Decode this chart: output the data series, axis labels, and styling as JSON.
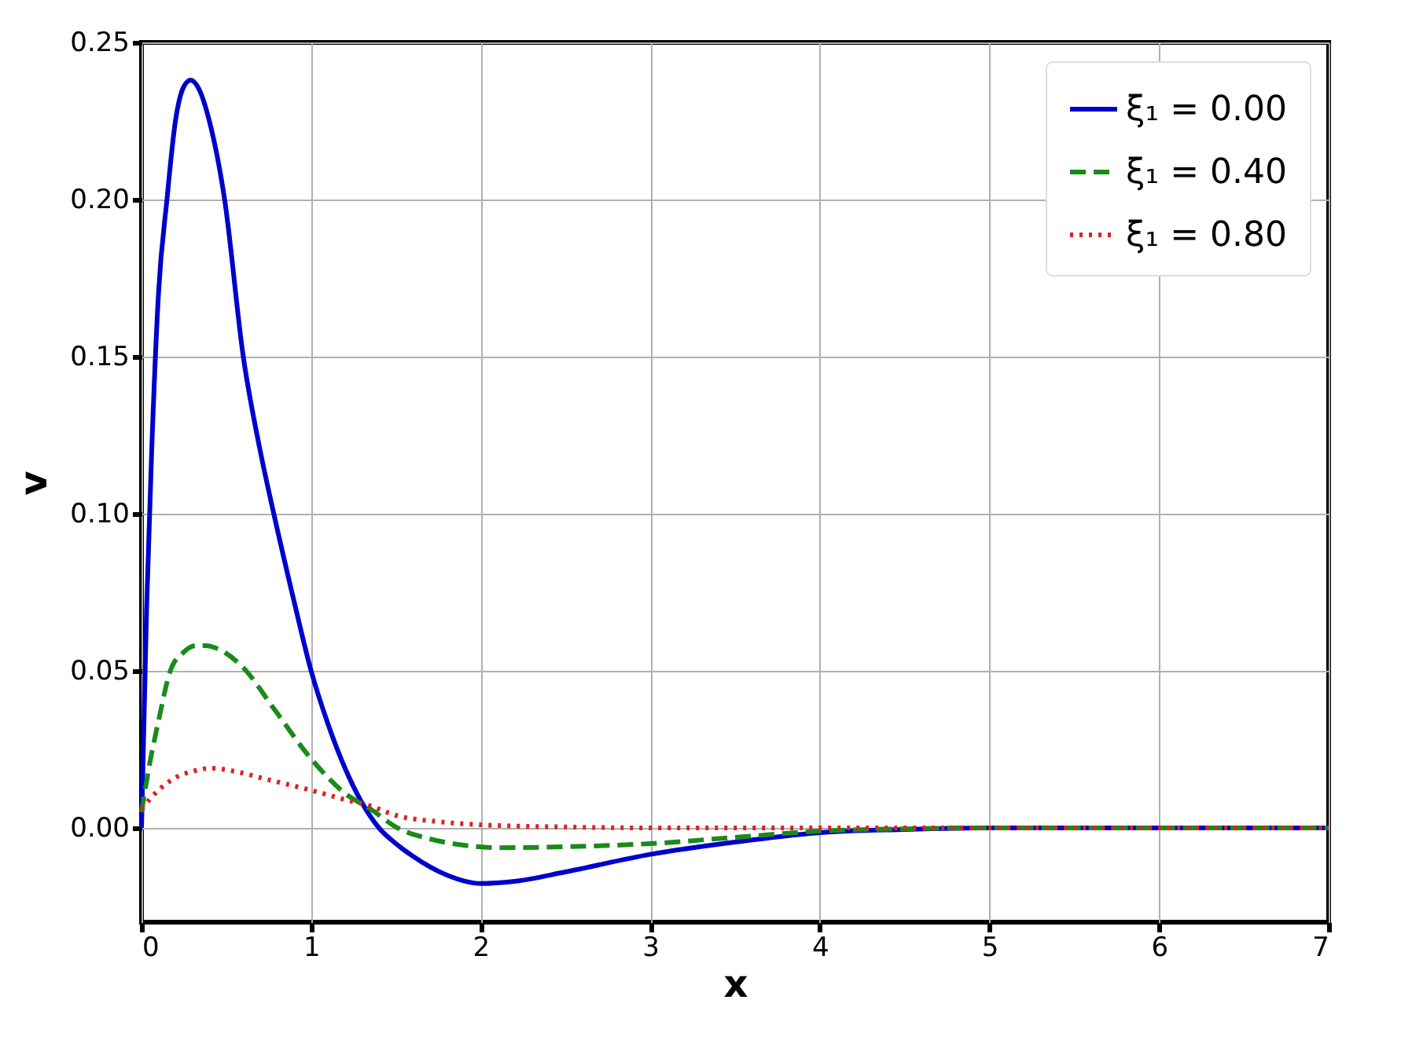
{
  "chart_data": {
    "type": "line",
    "xlabel": "x",
    "ylabel": "v",
    "xlim": [
      0,
      7
    ],
    "xticks": [
      0,
      1,
      2,
      3,
      4,
      5,
      6,
      7
    ],
    "ylim": [
      -0.03,
      0.25
    ],
    "yticks": [
      {
        "value": 0,
        "label": "0.00"
      },
      {
        "value": 0.05,
        "label": "0.05"
      },
      {
        "value": 0.1,
        "label": "0.10"
      },
      {
        "value": 0.15,
        "label": "0.15"
      },
      {
        "value": 0.2,
        "label": "0.20"
      },
      {
        "value": 0.25,
        "label": "0.25"
      }
    ],
    "grid": true,
    "legend": "top right",
    "marker": "none",
    "series": [
      {
        "name": "ξ₁ = 0.00",
        "color": "#0000cc",
        "line_style": "solid",
        "x": [
          0,
          0.03,
          0.06,
          0.1,
          0.15,
          0.2,
          0.25,
          0.29,
          0.34,
          0.4,
          0.49,
          0.6,
          0.7,
          0.78,
          0.9,
          1.0,
          1.1,
          1.2,
          1.3,
          1.4,
          1.5,
          1.6,
          1.8,
          2.0,
          2.2,
          2.5,
          3.0,
          3.5,
          4.0,
          4.5,
          5.0,
          6.0,
          7.0
        ],
        "values": [
          0,
          0.07,
          0.12,
          0.17,
          0.2,
          0.225,
          0.236,
          0.238,
          0.235,
          0.225,
          0.2,
          0.15,
          0.12,
          0.1,
          0.072,
          0.05,
          0.033,
          0.019,
          0.008,
          0,
          -0.005,
          -0.009,
          -0.015,
          -0.0177,
          -0.017,
          -0.014,
          -0.0084,
          -0.0045,
          -0.0015,
          -0.0005,
          0,
          0,
          0
        ]
      },
      {
        "name": "ξ₁ = 0.40",
        "color": "#1a8a1a",
        "line_style": "dashed",
        "x": [
          0,
          0.05,
          0.1,
          0.17,
          0.25,
          0.32,
          0.38,
          0.45,
          0.6,
          0.78,
          1.0,
          1.2,
          1.35,
          1.51,
          1.7,
          1.9,
          2.1,
          2.5,
          3.0,
          3.5,
          4.0,
          4.5,
          5.0,
          6.0,
          7.0
        ],
        "values": [
          0.005,
          0.021,
          0.034,
          0.05,
          0.056,
          0.058,
          0.058,
          0.057,
          0.051,
          0.038,
          0.022,
          0.011,
          0.006,
          0,
          -0.0035,
          -0.0055,
          -0.0063,
          -0.006,
          -0.005,
          -0.003,
          -0.001,
          -0.0003,
          0,
          0,
          0
        ]
      },
      {
        "name": "ξ₁ = 0.80",
        "color": "#dd2222",
        "line_style": "dotted",
        "x": [
          0,
          0.1,
          0.2,
          0.3,
          0.41,
          0.55,
          0.7,
          0.85,
          1.0,
          1.2,
          1.35,
          1.5,
          1.75,
          2.0,
          2.5,
          3.0,
          4.0,
          5.0,
          6.0,
          7.0
        ],
        "values": [
          0.006,
          0.012,
          0.016,
          0.018,
          0.019,
          0.018,
          0.016,
          0.014,
          0.012,
          0.009,
          0.007,
          0.004,
          0.002,
          0.001,
          0.0003,
          0,
          0,
          0,
          0,
          0
        ]
      }
    ]
  }
}
